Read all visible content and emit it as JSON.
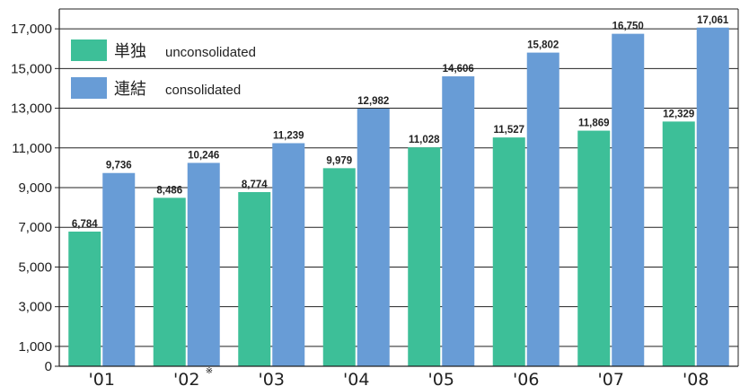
{
  "chart_data": {
    "type": "bar",
    "categories": [
      "'01",
      "'02",
      "'03",
      "'04",
      "'05",
      "'06",
      "'07",
      "'08"
    ],
    "category_note": {
      "index": 1,
      "mark": "※"
    },
    "series": [
      {
        "name": "単独",
        "name_sub": "unconsolidated",
        "color": "#3dbf98",
        "values": [
          6784,
          8486,
          8774,
          9979,
          11028,
          11527,
          11869,
          12329
        ],
        "labels": [
          "6,784",
          "8,486",
          "8,774",
          "9,979",
          "11,028",
          "11,527",
          "11,869",
          "12,329"
        ]
      },
      {
        "name": "連結",
        "name_sub": "consolidated",
        "color": "#689cd6",
        "values": [
          9736,
          10246,
          11239,
          12982,
          14606,
          15802,
          16750,
          17061
        ],
        "labels": [
          "9,736",
          "10,246",
          "11,239",
          "12,982",
          "14,606",
          "15,802",
          "16,750",
          "17,061"
        ]
      }
    ],
    "y_ticks": [
      0,
      1000,
      3000,
      5000,
      7000,
      9000,
      11000,
      13000,
      15000,
      17000
    ],
    "y_tick_labels": [
      "0",
      "1,000",
      "3,000",
      "5,000",
      "7,000",
      "9,000",
      "11,000",
      "13,000",
      "15,000",
      "17,000"
    ],
    "ylim": [
      0,
      18000
    ],
    "grid": true,
    "legend_position": "top-left",
    "title": "",
    "xlabel": "",
    "ylabel": ""
  }
}
